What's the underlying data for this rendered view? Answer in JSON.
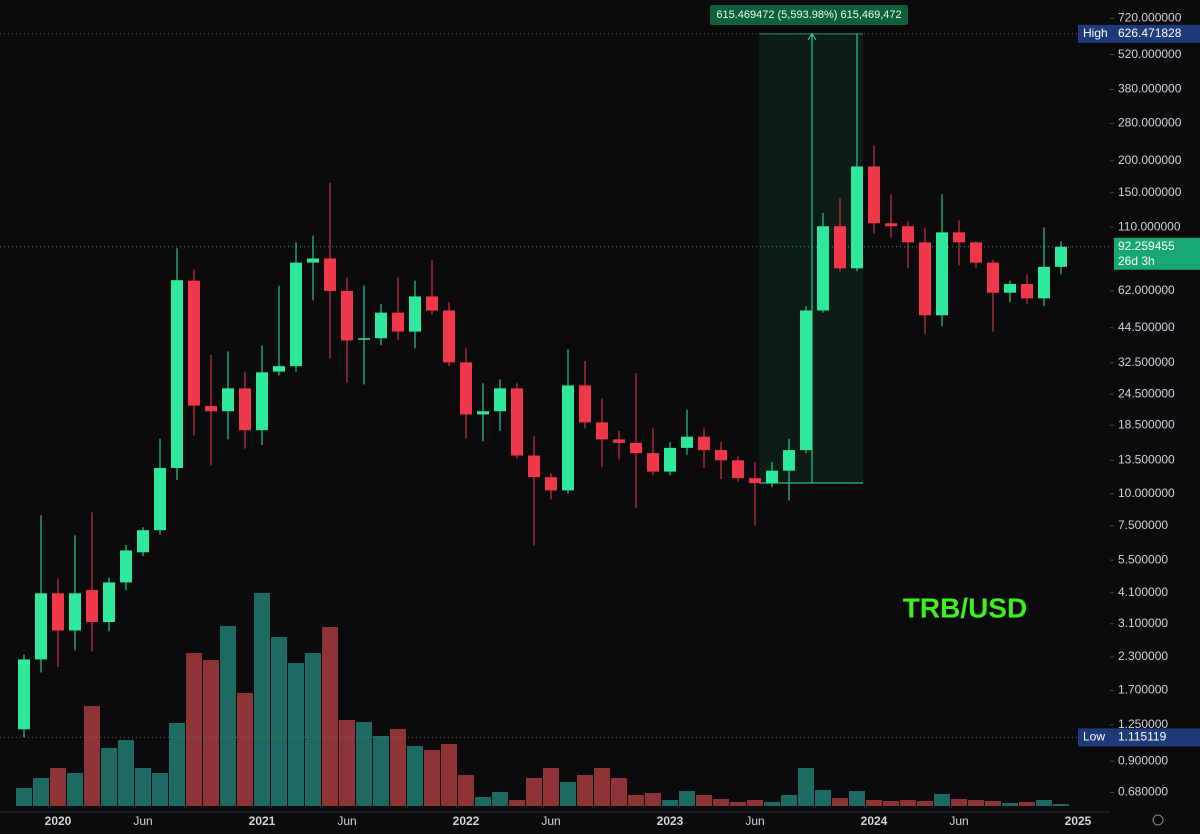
{
  "chart_data": {
    "type": "candlestick",
    "categories": [
      null,
      null,
      "2020",
      null,
      null,
      null,
      null,
      "Jun",
      null,
      null,
      null,
      null,
      null,
      null,
      "2021",
      null,
      null,
      null,
      null,
      "Jun",
      null,
      null,
      null,
      null,
      null,
      null,
      "2022",
      null,
      null,
      null,
      null,
      "Jun",
      null,
      null,
      null,
      null,
      null,
      null,
      "2023",
      null,
      null,
      null,
      null,
      "Jun",
      null,
      null,
      null,
      null,
      null,
      null,
      "2024",
      null,
      null,
      null,
      null,
      "Jun",
      null,
      null,
      null,
      null,
      null,
      null,
      "2025"
    ],
    "open": [
      1.2,
      2.25,
      4.08,
      2.92,
      4.2,
      3.15,
      4.5,
      5.9,
      7.2,
      12.6,
      68,
      22,
      21,
      25.8,
      17.7,
      30,
      31.5,
      80,
      83,
      62,
      40,
      40.5,
      51,
      43,
      59,
      52,
      32.6,
      20.4,
      21,
      25.8,
      14.1,
      11.6,
      10.3,
      26.5,
      19,
      16.3,
      15.8,
      14.4,
      12.2,
      15.1,
      16.7,
      14.8,
      13.5,
      11.5,
      11.0,
      12.3,
      14.8,
      52,
      111,
      76,
      190,
      114,
      111,
      96,
      49.8,
      105,
      96,
      80,
      61,
      66,
      58,
      77,
      null
    ],
    "high": [
      2.35,
      8.24,
      4.67,
      6.87,
      8.45,
      4.7,
      6.3,
      7.4,
      16.4,
      91,
      75,
      34.8,
      36,
      30,
      38,
      65,
      96,
      102,
      164,
      70,
      65,
      55,
      70,
      68,
      82,
      56,
      37,
      27,
      28,
      27,
      16.8,
      12,
      36.7,
      33,
      23.5,
      17.6,
      29.6,
      18,
      15.9,
      21.3,
      18,
      15.9,
      14,
      13.3,
      13.3,
      16.4,
      54,
      125,
      143,
      626.471828,
      230,
      148,
      116,
      109,
      148,
      117,
      97,
      82,
      68,
      72,
      110,
      97,
      null
    ],
    "low": [
      1.115119,
      2.0,
      2.1,
      2.44,
      2.42,
      2.9,
      4.2,
      5.7,
      6.9,
      11.3,
      16.9,
      12.9,
      16.3,
      15,
      15.5,
      29,
      30,
      57,
      33.8,
      27.2,
      26.7,
      38,
      40,
      37,
      50,
      31.5,
      16.4,
      16,
      17.6,
      13.7,
      6.28,
      9.5,
      10,
      18,
      12.7,
      13.6,
      8.8,
      11.8,
      11.8,
      14.2,
      12.6,
      11.4,
      11.1,
      7.5,
      10.6,
      9.4,
      14.4,
      51,
      74,
      74,
      104,
      100,
      76,
      42,
      45,
      78,
      76,
      43,
      56,
      55,
      54,
      72,
      null
    ],
    "close": [
      2.25,
      4.08,
      2.92,
      4.08,
      3.15,
      4.5,
      6.0,
      7.2,
      12.6,
      68.3,
      22.1,
      21,
      25.8,
      17.7,
      29.8,
      31.5,
      80,
      83,
      62,
      39.7,
      40.5,
      51,
      43,
      59,
      52,
      32.6,
      20.4,
      21,
      25.8,
      14.1,
      11.6,
      10.3,
      26.5,
      19,
      16.3,
      15.8,
      14.4,
      12.2,
      15.1,
      16.7,
      14.8,
      13.5,
      11.5,
      11.0,
      12.3,
      14.8,
      52,
      111,
      76,
      190,
      114,
      111,
      96,
      49.8,
      105,
      96,
      80,
      61,
      66,
      58,
      77,
      92.259455,
      null
    ],
    "volume": [
      18,
      28,
      38,
      33,
      100,
      58,
      66,
      38,
      33,
      83,
      153,
      146,
      180,
      113,
      213,
      169,
      143,
      153,
      179,
      86,
      84,
      70,
      77,
      60,
      56,
      62,
      31,
      9,
      14,
      6,
      28,
      38,
      24,
      31,
      38,
      28,
      11,
      13,
      6,
      15,
      11,
      7,
      4,
      6,
      4,
      11,
      38,
      16,
      8,
      15,
      6,
      5,
      6,
      5,
      12,
      7,
      6,
      5,
      3,
      4,
      6,
      2,
      null
    ],
    "up_color": "#2ee89c",
    "down_color": "#f0384a",
    "volume_up_color": "#1d6a63",
    "volume_down_color": "#8e3437",
    "log_scale": true,
    "ylim": [
      0.57,
      850
    ],
    "yticks": [
      {
        "value": 720,
        "label": "720.000000"
      },
      {
        "value": 520,
        "label": "520.000000"
      },
      {
        "value": 380,
        "label": "380.000000"
      },
      {
        "value": 280,
        "label": "280.000000"
      },
      {
        "value": 200,
        "label": "200.000000"
      },
      {
        "value": 150,
        "label": "150.000000"
      },
      {
        "value": 110,
        "label": "110.000000"
      },
      {
        "value": 62,
        "label": "62.000000"
      },
      {
        "value": 44.5,
        "label": "44.500000"
      },
      {
        "value": 32.5,
        "label": "32.500000"
      },
      {
        "value": 24.5,
        "label": "24.500000"
      },
      {
        "value": 18.5,
        "label": "18.500000"
      },
      {
        "value": 13.5,
        "label": "13.500000"
      },
      {
        "value": 10,
        "label": "10.000000"
      },
      {
        "value": 7.5,
        "label": "7.500000"
      },
      {
        "value": 5.5,
        "label": "5.500000"
      },
      {
        "value": 4.1,
        "label": "4.100000"
      },
      {
        "value": 3.1,
        "label": "3.100000"
      },
      {
        "value": 2.3,
        "label": "2.300000"
      },
      {
        "value": 1.7,
        "label": "1.700000"
      },
      {
        "value": 1.25,
        "label": "1.250000"
      },
      {
        "value": 0.9,
        "label": "0.900000"
      },
      {
        "value": 0.68,
        "label": "0.680000"
      }
    ],
    "high_label": "High",
    "high_value": 626.471828,
    "low_label": "Low",
    "low_value": 1.115119,
    "last_price": 92.259455,
    "countdown": "26d 3h",
    "measure_change": 615.469472,
    "measure_label": "615.469472 (5,593.98%) 615,469,472",
    "watermark": "TRB/USD"
  }
}
